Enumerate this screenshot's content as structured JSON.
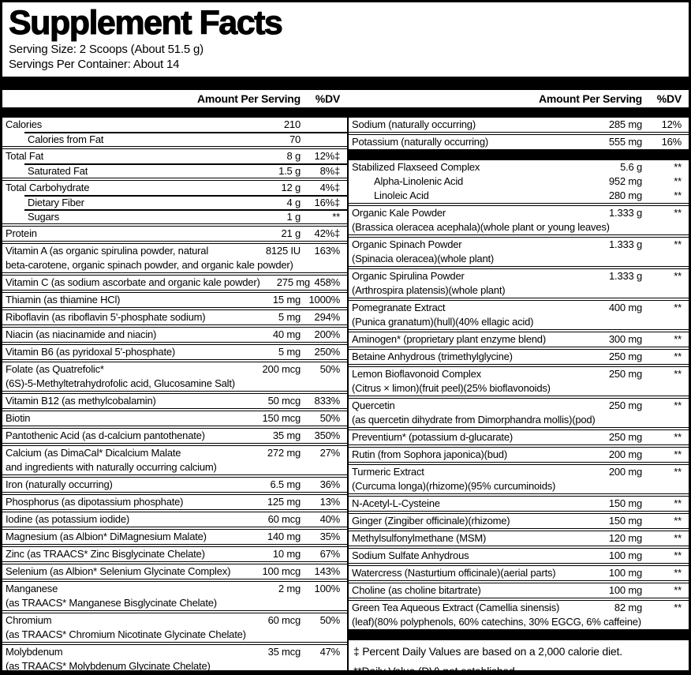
{
  "header": {
    "title": "Supplement Facts",
    "serving_size": "Serving Size: 2 Scoops (About 51.5 g)",
    "servings_per_container": "Servings Per Container: About 14"
  },
  "table": {
    "amount_header": "Amount Per Serving",
    "dv_header": "%DV",
    "left_rows": [
      {
        "label": "Calories",
        "amount": "210",
        "dv": "",
        "sep": "none"
      },
      {
        "label": "Calories from Fat",
        "amount": "70",
        "dv": "",
        "sub": true,
        "indent": true
      },
      {
        "label": "Total Fat",
        "amount": "8 g",
        "dv": "12%‡"
      },
      {
        "label": "Saturated Fat",
        "amount": "1.5 g",
        "dv": "8%‡",
        "sub": true,
        "indent": true
      },
      {
        "label": "Total Carbohydrate",
        "amount": "12 g",
        "dv": "4%‡"
      },
      {
        "label": "Dietary Fiber",
        "amount": "4 g",
        "dv": "16%‡",
        "sub": true,
        "indent": true
      },
      {
        "label": "Sugars",
        "amount": "1 g",
        "dv": "**",
        "sub": true,
        "indent": true
      },
      {
        "label": "Protein",
        "amount": "21 g",
        "dv": "42%‡"
      },
      {
        "label": "Vitamin A (as organic spirulina powder, natural",
        "amount": "8125 IU",
        "dv": "163%"
      },
      {
        "label": "beta-carotene, organic spinach powder, and organic kale powder)",
        "cont": true
      },
      {
        "label": "Vitamin C (as sodium ascorbate and organic kale powder)",
        "amount": "275 mg",
        "dv": "458%"
      },
      {
        "label": "Thiamin (as thiamine HCl)",
        "amount": "15 mg",
        "dv": "1000%"
      },
      {
        "label": "Riboflavin (as riboflavin 5'-phosphate sodium)",
        "amount": "5 mg",
        "dv": "294%"
      },
      {
        "label": "Niacin (as niacinamide and niacin)",
        "amount": "40 mg",
        "dv": "200%"
      },
      {
        "label": "Vitamin B6 (as pyridoxal 5'-phosphate)",
        "amount": "5 mg",
        "dv": "250%"
      },
      {
        "label": "Folate (as Quatrefolic*",
        "amount": "200 mcg",
        "dv": "50%"
      },
      {
        "label": "(6S)-5-Methyltetrahydrofolic acid, Glucosamine Salt)",
        "cont": true
      },
      {
        "label": "Vitamin B12 (as methylcobalamin)",
        "amount": "50 mcg",
        "dv": "833%"
      },
      {
        "label": "Biotin",
        "amount": "150 mcg",
        "dv": "50%"
      },
      {
        "label": "Pantothenic Acid (as d-calcium pantothenate)",
        "amount": "35 mg",
        "dv": "350%"
      },
      {
        "label": "Calcium (as DimaCal* Dicalcium Malate",
        "amount": "272 mg",
        "dv": "27%"
      },
      {
        "label": "and ingredients with naturally occurring calcium)",
        "cont": true
      },
      {
        "label": "Iron (naturally occurring)",
        "amount": "6.5 mg",
        "dv": "36%"
      },
      {
        "label": "Phosphorus (as dipotassium phosphate)",
        "amount": "125 mg",
        "dv": "13%"
      },
      {
        "label": "Iodine (as potassium iodide)",
        "amount": "60 mcg",
        "dv": "40%"
      },
      {
        "label": "Magnesium (as Albion* DiMagnesium Malate)",
        "amount": "140 mg",
        "dv": "35%"
      },
      {
        "label": "Zinc (as TRAACS* Zinc Bisglycinate Chelate)",
        "amount": "10 mg",
        "dv": "67%"
      },
      {
        "label": "Selenium (as Albion* Selenium Glycinate Complex)",
        "amount": "100 mcg",
        "dv": "143%"
      },
      {
        "label": "Manganese",
        "amount": "2 mg",
        "dv": "100%"
      },
      {
        "label": "(as TRAACS* Manganese Bisglycinate Chelate)",
        "cont": true
      },
      {
        "label": "Chromium",
        "amount": "60 mcg",
        "dv": "50%"
      },
      {
        "label": "(as TRAACS* Chromium Nicotinate Glycinate Chelate)",
        "cont": true
      },
      {
        "label": "Molybdenum",
        "amount": "35 mcg",
        "dv": "47%"
      },
      {
        "label": "(as TRAACS* Molybdenum Glycinate Chelate)",
        "cont": true
      }
    ],
    "right_rows": [
      {
        "label": "Sodium (naturally occurring)",
        "amount": "285 mg",
        "dv": "12%",
        "sep": "none"
      },
      {
        "label": "Potassium (naturally occurring)",
        "amount": "555 mg",
        "dv": "16%"
      },
      {
        "type": "bar"
      },
      {
        "label": "Stabilized Flaxseed Complex",
        "amount": "5.6 g",
        "dv": "**",
        "sep": "none"
      },
      {
        "label": "Alpha-Linolenic Acid",
        "amount": "952 mg",
        "dv": "**",
        "sep": "none",
        "indent": true
      },
      {
        "label": "Linoleic Acid",
        "amount": "280 mg",
        "dv": "**",
        "sep": "none",
        "indent": true
      },
      {
        "label": "Organic Kale Powder",
        "amount": "1.333 g",
        "dv": "**"
      },
      {
        "label": "(Brassica oleracea acephala)(whole plant or young leaves)",
        "cont": true
      },
      {
        "label": "Organic Spinach Powder",
        "amount": "1.333 g",
        "dv": "**"
      },
      {
        "label": "(Spinacia oleracea)(whole plant)",
        "cont": true
      },
      {
        "label": "Organic Spirulina Powder",
        "amount": "1.333 g",
        "dv": "**"
      },
      {
        "label": "(Arthrospira platensis)(whole plant)",
        "cont": true
      },
      {
        "label": "Pomegranate Extract",
        "amount": "400 mg",
        "dv": "**"
      },
      {
        "label": "(Punica granatum)(hull)(40% ellagic acid)",
        "cont": true
      },
      {
        "label": "Aminogen* (proprietary plant enzyme blend)",
        "amount": "300 mg",
        "dv": "**"
      },
      {
        "label": "Betaine Anhydrous (trimethylglycine)",
        "amount": "250 mg",
        "dv": "**"
      },
      {
        "label": "Lemon Bioflavonoid Complex",
        "amount": "250 mg",
        "dv": "**"
      },
      {
        "label": "(Citrus × limon)(fruit peel)(25% bioflavonoids)",
        "cont": true
      },
      {
        "label": "Quercetin",
        "amount": "250 mg",
        "dv": "**"
      },
      {
        "label": "(as quercetin dihydrate from Dimorphandra mollis)(pod)",
        "cont": true
      },
      {
        "label": "Preventium*  (potassium d-glucarate)",
        "amount": "250 mg",
        "dv": "**"
      },
      {
        "label": "Rutin (from Sophora japonica)(bud)",
        "amount": "200 mg",
        "dv": "**"
      },
      {
        "label": "Turmeric Extract",
        "amount": "200 mg",
        "dv": "**"
      },
      {
        "label": "(Curcuma longa)(rhizome)(95% curcuminoids)",
        "cont": true
      },
      {
        "label": "N-Acetyl-L-Cysteine",
        "amount": "150 mg",
        "dv": "**"
      },
      {
        "label": "Ginger (Zingiber officinale)(rhizome)",
        "amount": "150 mg",
        "dv": "**"
      },
      {
        "label": "Methylsulfonylmethane (MSM)",
        "amount": "120 mg",
        "dv": "**"
      },
      {
        "label": "Sodium Sulfate Anhydrous",
        "amount": "100 mg",
        "dv": "**"
      },
      {
        "label": "Watercress (Nasturtium officinale)(aerial parts)",
        "amount": "100 mg",
        "dv": "**"
      },
      {
        "label": "Choline (as choline bitartrate)",
        "amount": "100 mg",
        "dv": "**"
      },
      {
        "label": "Green Tea Aqueous Extract (Camellia sinensis)",
        "amount": "82 mg",
        "dv": "**"
      },
      {
        "label": "(leaf)(80% polyphenols, 60% catechins, 30% EGCG, 6% caffeine)",
        "cont": true
      },
      {
        "type": "bar"
      },
      {
        "type": "note",
        "text": "‡ Percent Daily Values are based on a 2,000 calorie diet."
      },
      {
        "type": "note",
        "text": "**Daily Value (DV) not established."
      }
    ]
  },
  "colors": {
    "ink": "#000000",
    "paper": "#ffffff"
  }
}
